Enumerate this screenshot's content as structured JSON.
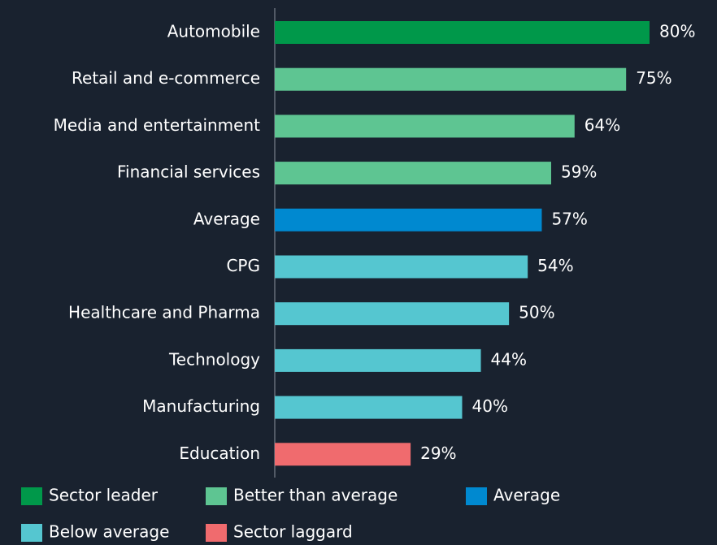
{
  "chart_data": {
    "type": "bar",
    "categories": [
      "Automobile",
      "Retail and e-commerce",
      "Media and entertainment",
      "Financial services",
      "Average",
      "CPG",
      "Healthcare and Pharma",
      "Technology",
      "Manufacturing",
      "Education"
    ],
    "values": [
      80,
      75,
      64,
      59,
      57,
      54,
      50,
      44,
      40,
      29
    ],
    "value_labels": [
      "80%",
      "75%",
      "64%",
      "59%",
      "57%",
      "54%",
      "50%",
      "44%",
      "40%",
      "29%"
    ],
    "colors": [
      "#00984a",
      "#5ec592",
      "#5ec592",
      "#5ec592",
      "#0089d0",
      "#55c6d0",
      "#55c6d0",
      "#55c6d0",
      "#55c6d0",
      "#f06b6e"
    ],
    "legend": [
      {
        "name": "Sector leader",
        "color": "#00984a"
      },
      {
        "name": "Better than average",
        "color": "#5ec592"
      },
      {
        "name": "Average",
        "color": "#0089d0"
      },
      {
        "name": "Below average",
        "color": "#55c6d0"
      },
      {
        "name": "Sector laggard",
        "color": "#f06b6e"
      }
    ]
  }
}
